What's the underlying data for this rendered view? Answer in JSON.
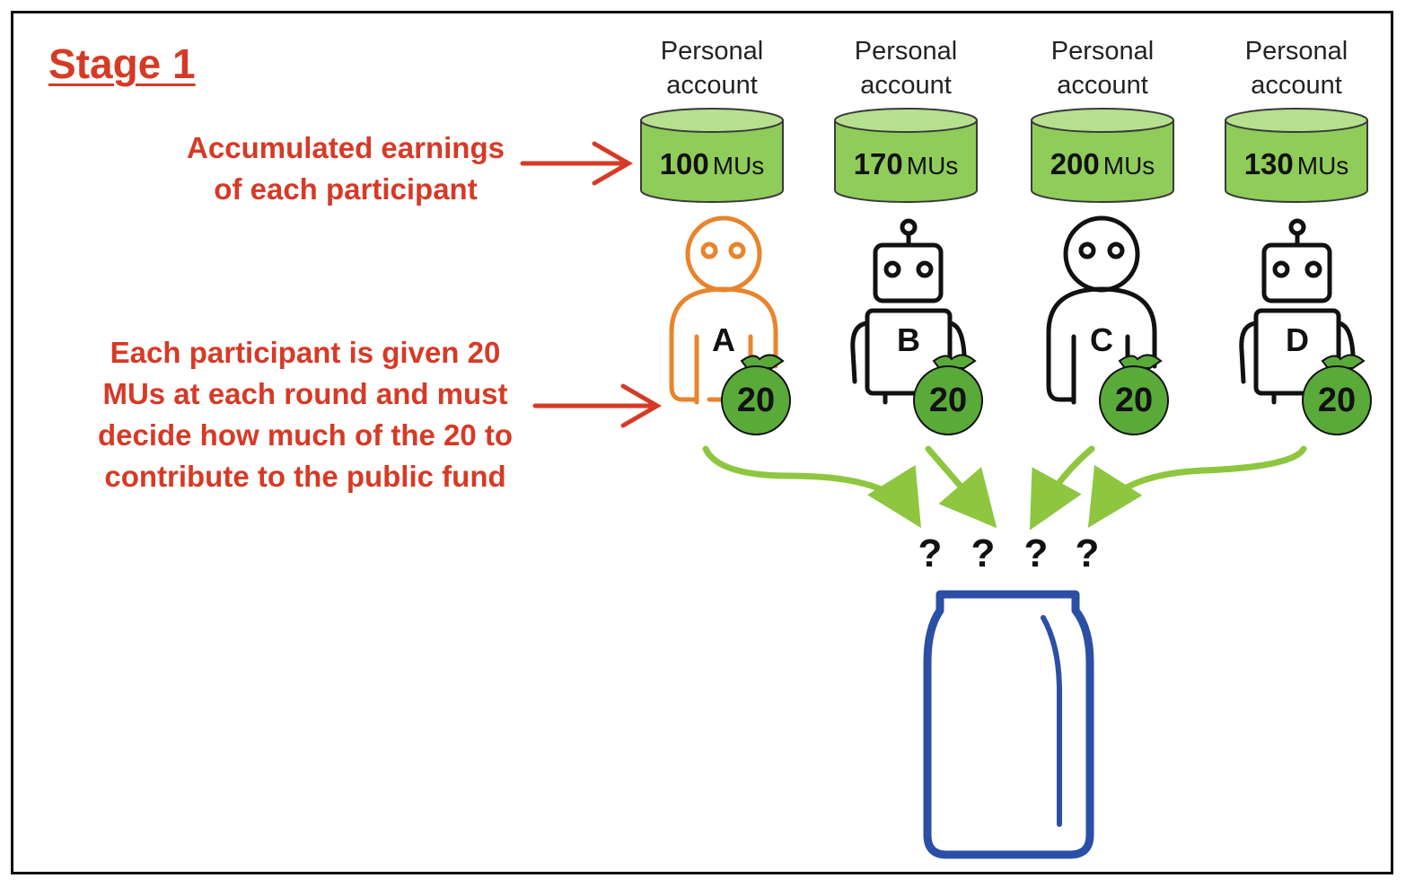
{
  "stage": {
    "title": "Stage 1"
  },
  "annotations": {
    "earnings_line1": "Accumulated earnings",
    "earnings_line2": "of each participant",
    "given_line1": "Each participant is given 20",
    "given_line2": "MUs at each round and must",
    "given_line3": "decide how much of the 20 to",
    "given_line4": "contribute to the public fund"
  },
  "participants": [
    {
      "letter": "A",
      "type": "human",
      "color": "#e8842c",
      "account_line1": "Personal",
      "account_line2": "account",
      "balance": "100",
      "unit": "MUs",
      "bag": "20"
    },
    {
      "letter": "B",
      "type": "robot",
      "color": "#111111",
      "account_line1": "Personal",
      "account_line2": "account",
      "balance": "170",
      "unit": "MUs",
      "bag": "20"
    },
    {
      "letter": "C",
      "type": "human",
      "color": "#111111",
      "account_line1": "Personal",
      "account_line2": "account",
      "balance": "200",
      "unit": "MUs",
      "bag": "20"
    },
    {
      "letter": "D",
      "type": "robot",
      "color": "#111111",
      "account_line1": "Personal",
      "account_line2": "account",
      "balance": "130",
      "unit": "MUs",
      "bag": "20"
    }
  ],
  "contributions": [
    "?",
    "?",
    "?",
    "?"
  ],
  "colors": {
    "annotation": "#d63a26",
    "account_fill": "#8fcc5a",
    "account_top": "#b6e08e",
    "bag": "#5aaa3a",
    "flow_arrow": "#8ec63f",
    "jar": "#2b4ea6"
  }
}
